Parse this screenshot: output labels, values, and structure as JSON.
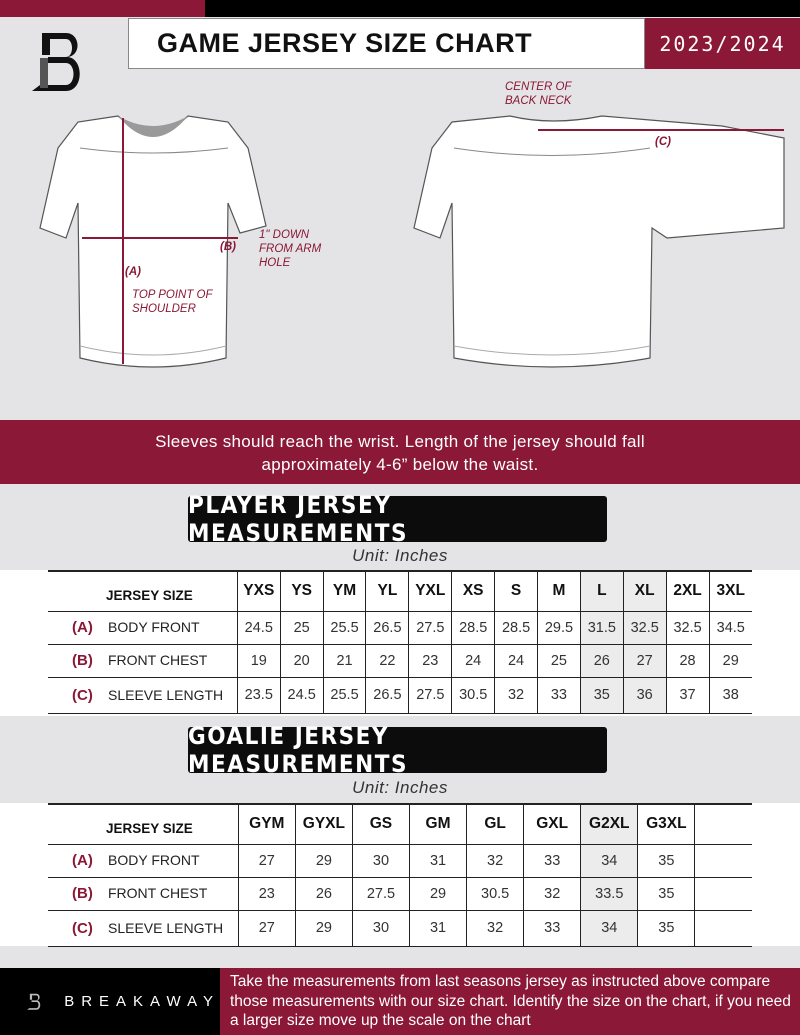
{
  "header": {
    "title": "GAME JERSEY SIZE CHART",
    "season": "2023/2024",
    "logo": "B"
  },
  "diagram": {
    "center_back_neck": "CENTER OF BACK NECK",
    "label_a": "(A)",
    "label_b": "(B)",
    "label_c": "(C)",
    "down_from_arm_hole": "1\" DOWN FROM ARM HOLE",
    "top_point_shoulder": "TOP POINT OF SHOULDER"
  },
  "banner": {
    "line1": "Sleeves should reach the wrist. Length of the jersey should fall",
    "line2": "approximately 4-6” below the waist."
  },
  "player": {
    "title": "PLAYER JERSEY MEASUREMENTS",
    "unit": "Unit: Inches",
    "size_header": "JERSEY SIZE",
    "sizes": [
      "YXS",
      "YS",
      "YM",
      "YL",
      "YXL",
      "XS",
      "S",
      "M",
      "L",
      "XL",
      "2XL",
      "3XL"
    ],
    "rows": [
      {
        "letter": "(A)",
        "label": "BODY FRONT",
        "values": [
          "24.5",
          "25",
          "25.5",
          "26.5",
          "27.5",
          "28.5",
          "28.5",
          "29.5",
          "31.5",
          "32.5",
          "32.5",
          "34.5"
        ]
      },
      {
        "letter": "(B)",
        "label": "FRONT CHEST",
        "values": [
          "19",
          "20",
          "21",
          "22",
          "23",
          "24",
          "24",
          "25",
          "26",
          "27",
          "28",
          "29"
        ]
      },
      {
        "letter": "(C)",
        "label": "SLEEVE LENGTH",
        "values": [
          "23.5",
          "24.5",
          "25.5",
          "26.5",
          "27.5",
          "30.5",
          "32",
          "33",
          "35",
          "36",
          "37",
          "38"
        ]
      }
    ]
  },
  "goalie": {
    "title": "GOALIE JERSEY MEASUREMENTS",
    "unit": "Unit: Inches",
    "size_header": "JERSEY SIZE",
    "sizes": [
      "GYM",
      "GYXL",
      "GS",
      "GM",
      "GL",
      "GXL",
      "G2XL",
      "G3XL",
      ""
    ],
    "rows": [
      {
        "letter": "(A)",
        "label": "BODY FRONT",
        "values": [
          "27",
          "29",
          "30",
          "31",
          "32",
          "33",
          "34",
          "35",
          ""
        ]
      },
      {
        "letter": "(B)",
        "label": "FRONT CHEST",
        "values": [
          "23",
          "26",
          "27.5",
          "29",
          "30.5",
          "32",
          "33.5",
          "35",
          ""
        ]
      },
      {
        "letter": "(C)",
        "label": "SLEEVE LENGTH",
        "values": [
          "27",
          "29",
          "30",
          "31",
          "32",
          "33",
          "34",
          "35",
          ""
        ]
      }
    ]
  },
  "footer": {
    "brand": "BREAKAWAY",
    "text": "Take the measurements from last seasons jersey as instructed above compare those measurements  with our size chart. Identify the size on the chart, if you need a larger size move up the scale on the chart"
  },
  "colors": {
    "accent": "#8a1836",
    "background": "#e4e4e6"
  }
}
